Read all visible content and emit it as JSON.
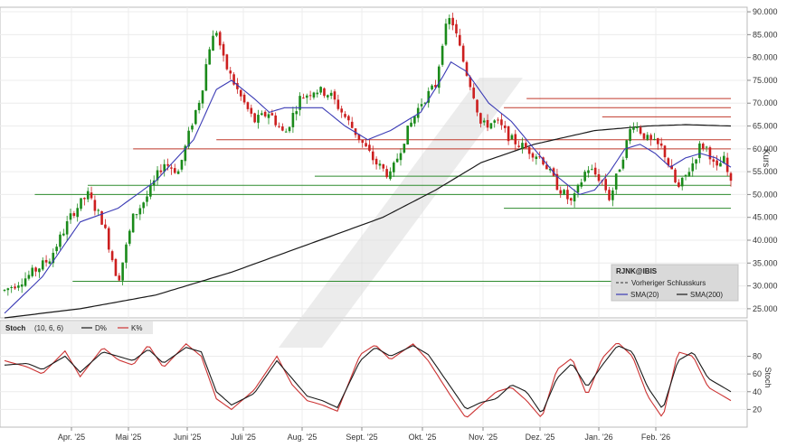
{
  "chart_data": [
    {
      "type": "candlestick",
      "symbol": "RJNK@IBIS",
      "ylabel": "Kurs",
      "ylim": [
        23,
        91
      ],
      "yticks": [
        25,
        30,
        35,
        40,
        45,
        50,
        55,
        60,
        65,
        70,
        75,
        80,
        85,
        90
      ],
      "ytick_labels": [
        "25.000",
        "30.000",
        "35.000",
        "40.000",
        "45.000",
        "50.000",
        "55.000",
        "60.000",
        "65.000",
        "70.000",
        "75.000",
        "80.000",
        "85.000",
        "90.000"
      ],
      "x_months": [
        "Apr. '25",
        "Mai '25",
        "Juni '25",
        "Juli '25",
        "Aug. '25",
        "Sept. '25",
        "Okt. '25",
        "Nov. '25",
        "Dez. '25",
        "Jan. '26",
        "Feb. '26"
      ],
      "colors": {
        "up": "#1a8a1a",
        "down": "#cc1f1f",
        "sma20": "#3b3bb5",
        "sma200": "#1a1a1a",
        "hline_red": "#c0392b",
        "hline_green": "#2e8b2e"
      },
      "legend": {
        "title": "RJNK@IBIS",
        "prev_close_label": "Vorheriger Schlusskurs",
        "sma20_label": "SMA(20)",
        "sma200_label": "SMA(200)"
      },
      "price_path": [
        [
          0,
          29
        ],
        [
          3,
          32
        ],
        [
          6,
          36
        ],
        [
          9,
          46
        ],
        [
          11,
          50
        ],
        [
          13,
          44
        ],
        [
          15,
          31
        ],
        [
          17,
          45
        ],
        [
          19,
          50
        ],
        [
          21,
          57
        ],
        [
          23,
          55
        ],
        [
          25,
          67
        ],
        [
          26,
          72
        ],
        [
          27,
          82
        ],
        [
          28,
          86
        ],
        [
          29,
          79
        ],
        [
          31,
          72
        ],
        [
          33,
          66
        ],
        [
          35,
          68
        ],
        [
          37,
          63
        ],
        [
          39,
          71
        ],
        [
          41,
          73
        ],
        [
          43,
          72
        ],
        [
          45,
          67
        ],
        [
          47,
          62
        ],
        [
          49,
          57
        ],
        [
          51,
          54
        ],
        [
          53,
          63
        ],
        [
          55,
          70
        ],
        [
          57,
          74
        ],
        [
          58,
          85
        ],
        [
          59,
          89
        ],
        [
          60,
          83
        ],
        [
          61,
          77
        ],
        [
          62,
          72
        ],
        [
          63,
          65
        ],
        [
          65,
          66
        ],
        [
          67,
          62
        ],
        [
          69,
          60
        ],
        [
          71,
          58
        ],
        [
          73,
          52
        ],
        [
          75,
          48
        ],
        [
          77,
          56
        ],
        [
          79,
          53
        ],
        [
          80,
          49
        ],
        [
          82,
          60
        ],
        [
          83,
          66
        ],
        [
          85,
          62
        ],
        [
          87,
          60
        ],
        [
          89,
          51
        ],
        [
          91,
          57
        ],
        [
          92,
          61
        ],
        [
          93,
          60
        ],
        [
          94,
          55
        ],
        [
          95,
          58
        ],
        [
          96,
          52
        ]
      ],
      "sma20_path": [
        [
          0,
          24
        ],
        [
          5,
          32
        ],
        [
          10,
          44
        ],
        [
          15,
          47
        ],
        [
          20,
          53
        ],
        [
          25,
          62
        ],
        [
          28,
          73
        ],
        [
          30,
          75
        ],
        [
          33,
          71
        ],
        [
          35,
          68
        ],
        [
          37,
          69
        ],
        [
          40,
          69
        ],
        [
          42,
          69
        ],
        [
          45,
          65
        ],
        [
          48,
          62
        ],
        [
          51,
          64
        ],
        [
          55,
          68
        ],
        [
          58,
          76
        ],
        [
          59,
          79
        ],
        [
          61,
          77
        ],
        [
          64,
          70
        ],
        [
          67,
          66
        ],
        [
          70,
          60
        ],
        [
          73,
          54
        ],
        [
          76,
          50
        ],
        [
          78,
          51
        ],
        [
          80,
          55
        ],
        [
          82,
          60
        ],
        [
          84,
          61
        ],
        [
          86,
          59
        ],
        [
          88,
          56
        ],
        [
          90,
          58
        ],
        [
          92,
          59
        ],
        [
          94,
          58
        ],
        [
          96,
          56
        ]
      ],
      "sma200_path": [
        [
          0,
          23
        ],
        [
          10,
          25
        ],
        [
          20,
          28
        ],
        [
          30,
          33
        ],
        [
          40,
          39
        ],
        [
          50,
          45
        ],
        [
          57,
          51
        ],
        [
          63,
          57
        ],
        [
          70,
          61
        ],
        [
          78,
          64
        ],
        [
          85,
          65
        ],
        [
          90,
          65.3
        ],
        [
          96,
          65
        ]
      ],
      "red_levels": [
        {
          "y": 71,
          "x_from": 69
        },
        {
          "y": 69,
          "x_from": 66
        },
        {
          "y": 67,
          "x_from": 79
        },
        {
          "y": 62,
          "x_from": 28
        },
        {
          "y": 60,
          "x_from": 17
        }
      ],
      "green_levels": [
        {
          "y": 54,
          "x_from": 41
        },
        {
          "y": 52,
          "x_from": 11
        },
        {
          "y": 50,
          "x_from": 4
        },
        {
          "y": 47,
          "x_from": 66
        },
        {
          "y": 31,
          "x_from": 9
        }
      ],
      "hline_x_end": 96
    },
    {
      "type": "line",
      "title": "Stoch",
      "params": "(10, 6, 6)",
      "series": [
        {
          "name": "D%",
          "color": "#1a1a1a",
          "values": [
            [
              0,
              70
            ],
            [
              3,
              72
            ],
            [
              5,
              65
            ],
            [
              8,
              80
            ],
            [
              10,
              62
            ],
            [
              13,
              85
            ],
            [
              15,
              80
            ],
            [
              17,
              75
            ],
            [
              19,
              88
            ],
            [
              21,
              72
            ],
            [
              24,
              90
            ],
            [
              26,
              85
            ],
            [
              28,
              40
            ],
            [
              30,
              25
            ],
            [
              33,
              38
            ],
            [
              36,
              75
            ],
            [
              38,
              55
            ],
            [
              40,
              35
            ],
            [
              42,
              30
            ],
            [
              44,
              22
            ],
            [
              47,
              75
            ],
            [
              49,
              90
            ],
            [
              51,
              80
            ],
            [
              54,
              92
            ],
            [
              56,
              82
            ],
            [
              59,
              45
            ],
            [
              61,
              20
            ],
            [
              63,
              28
            ],
            [
              65,
              32
            ],
            [
              67,
              48
            ],
            [
              69,
              40
            ],
            [
              71,
              15
            ],
            [
              73,
              55
            ],
            [
              75,
              72
            ],
            [
              77,
              45
            ],
            [
              79,
              70
            ],
            [
              81,
              92
            ],
            [
              83,
              85
            ],
            [
              85,
              45
            ],
            [
              87,
              20
            ],
            [
              89,
              75
            ],
            [
              91,
              85
            ],
            [
              93,
              55
            ],
            [
              96,
              40
            ]
          ]
        },
        {
          "name": "K%",
          "color": "#cc3333",
          "values": [
            [
              0,
              75
            ],
            [
              3,
              68
            ],
            [
              5,
              60
            ],
            [
              8,
              86
            ],
            [
              10,
              57
            ],
            [
              13,
              90
            ],
            [
              15,
              76
            ],
            [
              17,
              70
            ],
            [
              19,
              93
            ],
            [
              21,
              67
            ],
            [
              24,
              94
            ],
            [
              26,
              80
            ],
            [
              28,
              32
            ],
            [
              30,
              20
            ],
            [
              33,
              42
            ],
            [
              36,
              80
            ],
            [
              38,
              48
            ],
            [
              40,
              30
            ],
            [
              42,
              25
            ],
            [
              44,
              18
            ],
            [
              47,
              82
            ],
            [
              49,
              93
            ],
            [
              51,
              76
            ],
            [
              54,
              94
            ],
            [
              56,
              75
            ],
            [
              59,
              35
            ],
            [
              61,
              10
            ],
            [
              63,
              25
            ],
            [
              65,
              40
            ],
            [
              67,
              45
            ],
            [
              69,
              30
            ],
            [
              71,
              10
            ],
            [
              73,
              65
            ],
            [
              75,
              78
            ],
            [
              77,
              35
            ],
            [
              79,
              78
            ],
            [
              81,
              96
            ],
            [
              83,
              80
            ],
            [
              85,
              35
            ],
            [
              87,
              10
            ],
            [
              89,
              85
            ],
            [
              91,
              80
            ],
            [
              93,
              45
            ],
            [
              96,
              30
            ]
          ]
        }
      ],
      "ylabel": "Stoch",
      "ylim": [
        0,
        105
      ],
      "yticks": [
        20,
        40,
        60,
        80
      ],
      "ytick_labels": [
        "20",
        "40",
        "60",
        "80"
      ]
    }
  ]
}
